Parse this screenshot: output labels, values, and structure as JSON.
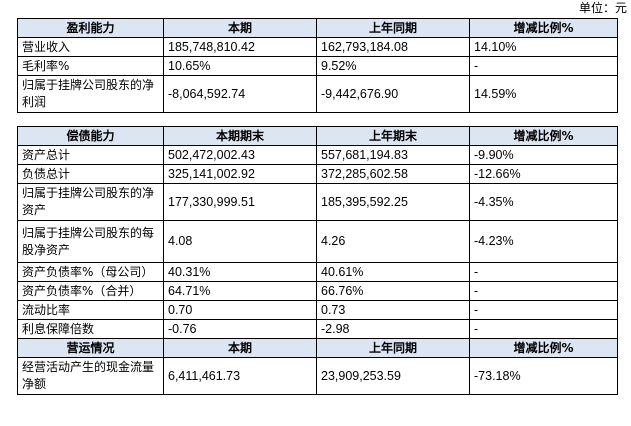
{
  "unit": "单位：元",
  "table1": {
    "headers": [
      "盈利能力",
      "本期",
      "上年同期",
      "增减比例%"
    ],
    "rows": [
      [
        "营业收入",
        "185,748,810.42",
        "162,793,184.08",
        "14.10%"
      ],
      [
        "毛利率%",
        "10.65%",
        "9.52%",
        "-"
      ],
      [
        "归属于挂牌公司股东的净利润",
        "-8,064,592.74",
        "-9,442,676.90",
        "14.59%"
      ]
    ]
  },
  "table2": {
    "headers": [
      "偿债能力",
      "本期期末",
      "上年期末",
      "增减比例%"
    ],
    "rows": [
      [
        "资产总计",
        "502,472,002.43",
        "557,681,194.83",
        "-9.90%"
      ],
      [
        "负债总计",
        "325,141,002.92",
        "372,285,602.58",
        "-12.66%"
      ],
      [
        "归属于挂牌公司股东的净资产",
        "177,330,999.51",
        "185,395,592.25",
        "-4.35%"
      ],
      [
        "归属于挂牌公司股东的每股净资产",
        "4.08",
        "4.26",
        "-4.23%"
      ],
      [
        "资产负债率%（母公司）",
        "40.31%",
        "40.61%",
        "-"
      ],
      [
        "资产负债率%（合并）",
        "64.71%",
        "66.76%",
        "-"
      ],
      [
        "流动比率",
        "0.70",
        "0.73",
        "-"
      ],
      [
        "利息保障倍数",
        "-0.76",
        "-2.98",
        "-"
      ]
    ],
    "headers2": [
      "营运情况",
      "本期",
      "上年同期",
      "增减比例%"
    ],
    "rows2": [
      [
        "经营活动产生的现金流量净额",
        "6,411,461.73",
        "23,909,253.59",
        "-73.18%"
      ]
    ]
  }
}
